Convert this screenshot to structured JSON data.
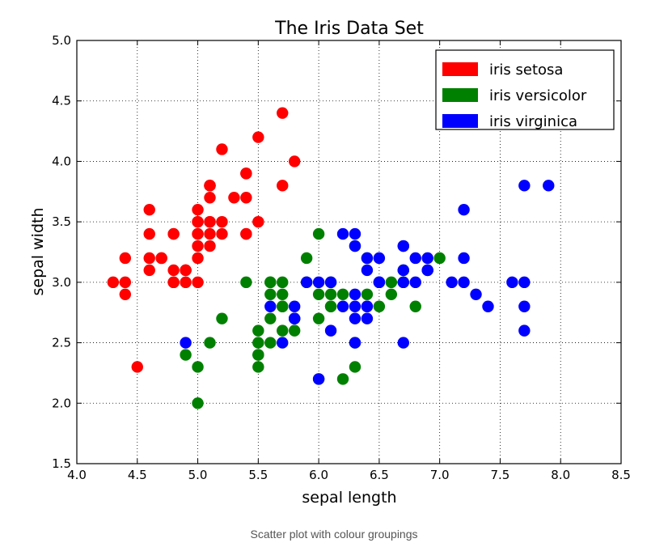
{
  "caption": "Scatter plot with colour groupings",
  "chart_data": {
    "type": "scatter",
    "title": "The Iris Data Set",
    "xlabel": "sepal length",
    "ylabel": "sepal width",
    "xlim": [
      4.0,
      8.5
    ],
    "ylim": [
      1.5,
      5.0
    ],
    "xticks": [
      "4.0",
      "4.5",
      "5.0",
      "5.5",
      "6.0",
      "6.5",
      "7.0",
      "7.5",
      "8.0",
      "8.5"
    ],
    "yticks": [
      "1.5",
      "2.0",
      "2.5",
      "3.0",
      "3.5",
      "4.0",
      "4.5",
      "5.0"
    ],
    "grid": true,
    "grid_style": "dotted",
    "legend_position": "top-right",
    "series": [
      {
        "name": "iris setosa",
        "color": "#ff0000",
        "points": [
          [
            5.1,
            3.5
          ],
          [
            4.9,
            3.0
          ],
          [
            4.7,
            3.2
          ],
          [
            4.6,
            3.1
          ],
          [
            5.0,
            3.6
          ],
          [
            5.4,
            3.9
          ],
          [
            4.6,
            3.4
          ],
          [
            5.0,
            3.4
          ],
          [
            4.4,
            2.9
          ],
          [
            4.9,
            3.1
          ],
          [
            5.4,
            3.7
          ],
          [
            4.8,
            3.4
          ],
          [
            4.8,
            3.0
          ],
          [
            4.3,
            3.0
          ],
          [
            5.8,
            4.0
          ],
          [
            5.7,
            4.4
          ],
          [
            5.4,
            3.9
          ],
          [
            5.1,
            3.5
          ],
          [
            5.7,
            3.8
          ],
          [
            5.1,
            3.8
          ],
          [
            5.4,
            3.4
          ],
          [
            5.1,
            3.7
          ],
          [
            4.6,
            3.6
          ],
          [
            5.1,
            3.3
          ],
          [
            4.8,
            3.4
          ],
          [
            5.0,
            3.0
          ],
          [
            5.0,
            3.4
          ],
          [
            5.2,
            3.5
          ],
          [
            5.2,
            3.4
          ],
          [
            4.7,
            3.2
          ],
          [
            4.8,
            3.1
          ],
          [
            5.4,
            3.4
          ],
          [
            5.2,
            4.1
          ],
          [
            5.5,
            4.2
          ],
          [
            4.9,
            3.1
          ],
          [
            5.0,
            3.2
          ],
          [
            5.5,
            3.5
          ],
          [
            4.9,
            3.1
          ],
          [
            4.4,
            3.0
          ],
          [
            5.1,
            3.4
          ],
          [
            5.0,
            3.5
          ],
          [
            4.5,
            2.3
          ],
          [
            4.4,
            3.2
          ],
          [
            5.0,
            3.5
          ],
          [
            5.1,
            3.8
          ],
          [
            4.8,
            3.0
          ],
          [
            5.1,
            3.8
          ],
          [
            4.6,
            3.2
          ],
          [
            5.3,
            3.7
          ],
          [
            5.0,
            3.3
          ]
        ]
      },
      {
        "name": "iris versicolor",
        "color": "#008000",
        "points": [
          [
            7.0,
            3.2
          ],
          [
            6.4,
            3.2
          ],
          [
            6.9,
            3.1
          ],
          [
            5.5,
            2.3
          ],
          [
            6.5,
            2.8
          ],
          [
            5.7,
            2.8
          ],
          [
            6.3,
            3.3
          ],
          [
            4.9,
            2.4
          ],
          [
            6.6,
            2.9
          ],
          [
            5.2,
            2.7
          ],
          [
            5.0,
            2.0
          ],
          [
            5.9,
            3.0
          ],
          [
            6.0,
            2.2
          ],
          [
            6.1,
            2.9
          ],
          [
            5.6,
            2.9
          ],
          [
            6.7,
            3.1
          ],
          [
            5.6,
            3.0
          ],
          [
            5.8,
            2.7
          ],
          [
            6.2,
            2.2
          ],
          [
            5.6,
            2.5
          ],
          [
            5.9,
            3.2
          ],
          [
            6.1,
            2.8
          ],
          [
            6.3,
            2.5
          ],
          [
            6.1,
            2.8
          ],
          [
            6.4,
            2.9
          ],
          [
            6.6,
            3.0
          ],
          [
            6.8,
            2.8
          ],
          [
            6.7,
            3.0
          ],
          [
            6.0,
            2.9
          ],
          [
            5.7,
            2.6
          ],
          [
            5.5,
            2.4
          ],
          [
            5.5,
            2.4
          ],
          [
            5.8,
            2.7
          ],
          [
            6.0,
            2.7
          ],
          [
            5.4,
            3.0
          ],
          [
            6.0,
            3.4
          ],
          [
            6.7,
            3.1
          ],
          [
            6.3,
            2.3
          ],
          [
            5.6,
            3.0
          ],
          [
            5.5,
            2.5
          ],
          [
            5.5,
            2.6
          ],
          [
            6.1,
            3.0
          ],
          [
            5.8,
            2.6
          ],
          [
            5.0,
            2.3
          ],
          [
            5.6,
            2.7
          ],
          [
            5.7,
            3.0
          ],
          [
            5.7,
            2.9
          ],
          [
            6.2,
            2.9
          ],
          [
            5.1,
            2.5
          ],
          [
            5.7,
            2.8
          ]
        ]
      },
      {
        "name": "iris virginica",
        "color": "#0000ff",
        "points": [
          [
            6.3,
            3.3
          ],
          [
            5.8,
            2.7
          ],
          [
            7.1,
            3.0
          ],
          [
            6.3,
            2.9
          ],
          [
            6.5,
            3.0
          ],
          [
            7.6,
            3.0
          ],
          [
            4.9,
            2.5
          ],
          [
            7.3,
            2.9
          ],
          [
            6.7,
            2.5
          ],
          [
            7.2,
            3.6
          ],
          [
            6.5,
            3.2
          ],
          [
            6.4,
            2.7
          ],
          [
            6.8,
            3.0
          ],
          [
            5.7,
            2.5
          ],
          [
            5.8,
            2.8
          ],
          [
            6.4,
            3.2
          ],
          [
            6.5,
            3.0
          ],
          [
            7.7,
            3.8
          ],
          [
            7.7,
            2.6
          ],
          [
            6.0,
            2.2
          ],
          [
            6.9,
            3.2
          ],
          [
            5.6,
            2.8
          ],
          [
            7.7,
            2.8
          ],
          [
            6.3,
            2.7
          ],
          [
            6.7,
            3.3
          ],
          [
            7.2,
            3.2
          ],
          [
            6.2,
            2.8
          ],
          [
            6.1,
            3.0
          ],
          [
            6.4,
            2.8
          ],
          [
            7.2,
            3.0
          ],
          [
            7.4,
            2.8
          ],
          [
            7.9,
            3.8
          ],
          [
            6.4,
            2.8
          ],
          [
            6.3,
            2.8
          ],
          [
            6.1,
            2.6
          ],
          [
            7.7,
            3.0
          ],
          [
            6.3,
            3.4
          ],
          [
            6.4,
            3.1
          ],
          [
            6.0,
            3.0
          ],
          [
            6.9,
            3.1
          ],
          [
            6.7,
            3.1
          ],
          [
            6.9,
            3.1
          ],
          [
            5.8,
            2.7
          ],
          [
            6.8,
            3.2
          ],
          [
            6.7,
            3.3
          ],
          [
            6.7,
            3.0
          ],
          [
            6.3,
            2.5
          ],
          [
            6.5,
            3.0
          ],
          [
            6.2,
            3.4
          ],
          [
            5.9,
            3.0
          ]
        ]
      }
    ]
  }
}
